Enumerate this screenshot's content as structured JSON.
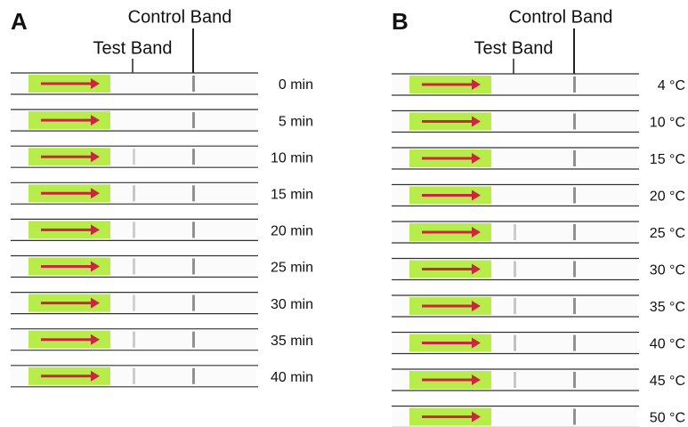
{
  "panels": [
    {
      "label": "A",
      "test_label": "Test Band",
      "control_label": "Control Band",
      "rows": [
        {
          "label": "0 min"
        },
        {
          "label": "5 min"
        },
        {
          "label": "10 min"
        },
        {
          "label": "15 min"
        },
        {
          "label": "20 min"
        },
        {
          "label": "25 min"
        },
        {
          "label": "30 min"
        },
        {
          "label": "35 min"
        },
        {
          "label": "40 min"
        }
      ]
    },
    {
      "label": "B",
      "test_label": "Test Band",
      "control_label": "Control Band",
      "rows": [
        {
          "label": "4 °C"
        },
        {
          "label": "10 °C"
        },
        {
          "label": "15 °C"
        },
        {
          "label": "20 °C"
        },
        {
          "label": "25 °C"
        },
        {
          "label": "30 °C"
        },
        {
          "label": "35 °C"
        },
        {
          "label": "40 °C"
        },
        {
          "label": "45 °C"
        },
        {
          "label": "50 °C"
        }
      ]
    }
  ]
}
